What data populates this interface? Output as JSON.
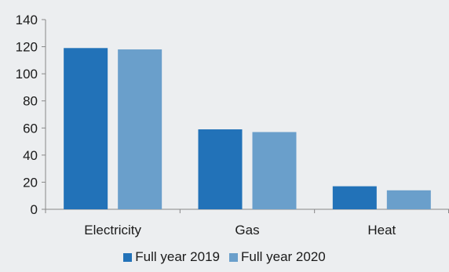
{
  "chart_data": {
    "type": "bar",
    "categories": [
      "Electricity",
      "Gas",
      "Heat"
    ],
    "series": [
      {
        "name": "Full year 2019",
        "values": [
          119,
          59,
          17
        ],
        "color": "#2272B8"
      },
      {
        "name": "Full year 2020",
        "values": [
          118,
          57,
          14
        ],
        "color": "#6A9FCB"
      }
    ],
    "ylim": [
      0,
      140
    ],
    "yticks": [
      0,
      20,
      40,
      60,
      80,
      100,
      120,
      140
    ],
    "grid": false,
    "legend_position": "bottom"
  }
}
